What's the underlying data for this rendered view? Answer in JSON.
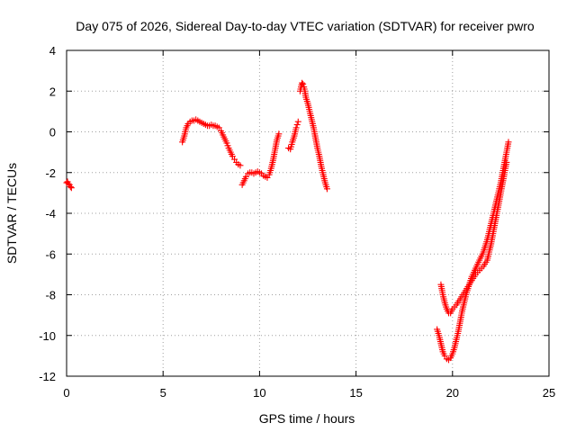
{
  "chart_data": {
    "type": "scatter",
    "title": "Day 075 of 2026, Sidereal Day-to-day VTEC variation (SDTVAR) for receiver pwro",
    "xlabel": "GPS time / hours",
    "ylabel": "SDTVAR / TECUs",
    "xlim": [
      0,
      25
    ],
    "ylim": [
      -12,
      4
    ],
    "xticks": [
      0,
      5,
      10,
      15,
      20,
      25
    ],
    "yticks": [
      -12,
      -10,
      -8,
      -6,
      -4,
      -2,
      0,
      2,
      4
    ],
    "xtick_labels": [
      "0",
      "5",
      "10",
      "15",
      "20",
      "25"
    ],
    "ytick_labels": [
      "-12",
      "-10",
      "-8",
      "-6",
      "-4",
      "-2",
      "0",
      "2",
      "4"
    ],
    "grid": true,
    "marker": "+",
    "color": "#ff0000",
    "series": [
      {
        "name": "segment-1",
        "x": [
          0.0,
          0.05,
          0.1,
          0.15,
          0.2,
          0.25
        ],
        "y": [
          -2.5,
          -2.45,
          -2.55,
          -2.6,
          -2.7,
          -2.75
        ]
      },
      {
        "name": "segment-2",
        "x": [
          6.0,
          6.1,
          6.2,
          6.3,
          6.4,
          6.5,
          6.6,
          6.7,
          6.8,
          6.9,
          7.0,
          7.1,
          7.2,
          7.3,
          7.4,
          7.5,
          7.6,
          7.7,
          7.8,
          7.9,
          8.0,
          8.1,
          8.2,
          8.3,
          8.4,
          8.5,
          8.6,
          8.7,
          8.8,
          8.9,
          9.0
        ],
        "y": [
          -0.5,
          -0.2,
          0.2,
          0.4,
          0.5,
          0.55,
          0.55,
          0.6,
          0.55,
          0.5,
          0.45,
          0.4,
          0.35,
          0.3,
          0.3,
          0.35,
          0.3,
          0.3,
          0.25,
          0.2,
          0.05,
          -0.15,
          -0.35,
          -0.55,
          -0.8,
          -1.0,
          -1.2,
          -1.35,
          -1.5,
          -1.6,
          -1.65
        ]
      },
      {
        "name": "segment-3",
        "x": [
          9.1,
          9.2,
          9.3,
          9.4,
          9.5,
          9.6,
          9.7,
          9.8,
          9.9,
          10.0,
          10.1,
          10.2,
          10.3,
          10.4,
          10.5,
          10.6,
          10.7,
          10.8,
          10.9,
          11.0
        ],
        "y": [
          -2.6,
          -2.4,
          -2.2,
          -2.05,
          -2.0,
          -2.0,
          -2.05,
          -2.0,
          -1.95,
          -2.0,
          -2.05,
          -2.15,
          -2.2,
          -2.25,
          -2.1,
          -1.8,
          -1.4,
          -0.9,
          -0.4,
          -0.1
        ]
      },
      {
        "name": "segment-4",
        "x": [
          11.5,
          11.6,
          11.7,
          11.8,
          11.85,
          11.9,
          11.95,
          12.0
        ],
        "y": [
          -0.8,
          -0.85,
          -0.5,
          -0.2,
          0.0,
          0.2,
          0.35,
          0.5
        ]
      },
      {
        "name": "segment-5",
        "x": [
          12.1,
          12.15,
          12.2,
          12.25,
          12.3,
          12.35,
          12.4,
          12.5,
          12.6,
          12.7,
          12.8,
          12.9,
          13.0,
          13.1,
          13.2,
          13.3,
          13.4,
          13.5
        ],
        "y": [
          2.0,
          2.2,
          2.4,
          2.35,
          2.2,
          2.0,
          1.7,
          1.4,
          1.0,
          0.6,
          0.2,
          -0.3,
          -0.8,
          -1.2,
          -1.7,
          -2.1,
          -2.5,
          -2.8
        ]
      },
      {
        "name": "segment-6",
        "x": [
          19.2,
          19.3,
          19.4,
          19.5,
          19.6,
          19.7,
          19.8,
          19.9,
          20.0,
          20.1,
          20.2,
          20.3,
          20.4,
          20.5,
          20.6,
          20.7,
          20.8,
          20.9,
          21.0,
          21.1,
          21.2,
          21.3,
          21.4,
          21.5,
          21.6,
          21.7,
          21.8,
          21.9,
          22.0,
          22.1,
          22.2,
          22.3,
          22.4,
          22.5,
          22.6,
          22.7,
          22.8,
          22.9
        ],
        "y": [
          -9.7,
          -10.0,
          -10.4,
          -10.8,
          -11.0,
          -11.15,
          -11.2,
          -11.1,
          -10.9,
          -10.6,
          -10.2,
          -9.8,
          -9.3,
          -8.8,
          -8.4,
          -8.0,
          -7.7,
          -7.4,
          -7.1,
          -6.9,
          -6.7,
          -6.5,
          -6.3,
          -6.1,
          -5.9,
          -5.6,
          -5.3,
          -4.9,
          -4.5,
          -4.1,
          -3.7,
          -3.3,
          -2.9,
          -2.5,
          -2.0,
          -1.5,
          -1.0,
          -0.5
        ]
      },
      {
        "name": "segment-7",
        "x": [
          19.4,
          19.5,
          19.6,
          19.7,
          19.8,
          19.9,
          20.0,
          20.2,
          20.4,
          20.6,
          20.8,
          21.0,
          21.2,
          21.4,
          21.6,
          21.8,
          22.0,
          22.2,
          22.4,
          22.6,
          22.8
        ],
        "y": [
          -7.5,
          -8.0,
          -8.4,
          -8.7,
          -8.9,
          -8.9,
          -8.7,
          -8.5,
          -8.2,
          -7.9,
          -7.6,
          -7.3,
          -7.0,
          -6.8,
          -6.6,
          -6.3,
          -5.5,
          -4.5,
          -3.5,
          -2.5,
          -1.5
        ]
      }
    ]
  }
}
